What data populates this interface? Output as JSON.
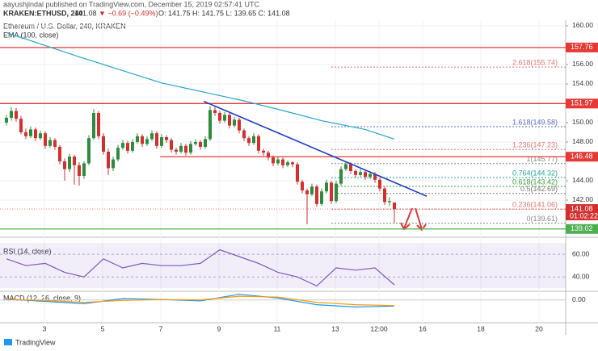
{
  "header": {
    "publisher": "aayushjindal published on TradingView.com, December 15, 2019 02:57:41 UTC",
    "symbol": "KRAKEN:ETHUSD, 240",
    "last": "141.08",
    "change": "▼ −0.69 (−0.49%)",
    "ohlc": "O: 141.75  H: 141.75  L: 139.65  C: 141.08"
  },
  "footer": {
    "brand": "TradingView"
  },
  "chart_data": {
    "type": "candlestick",
    "title": "Ethereum / U.S. Dollar, 240, KRAKEN",
    "up_color": "#2e8b3e",
    "down_color": "#d32f2f",
    "xlim": [
      -1.33,
      115.33
    ],
    "xticks": [
      {
        "value": 7.83,
        "label": "3"
      },
      {
        "value": 19.83,
        "label": "5"
      },
      {
        "value": 31.83,
        "label": "7"
      },
      {
        "value": 43.83,
        "label": "9"
      },
      {
        "value": 55.83,
        "label": "11"
      },
      {
        "value": 67.83,
        "label": "13"
      },
      {
        "value": 76.83,
        "label": "12:00"
      },
      {
        "value": 85.83,
        "label": "16"
      },
      {
        "value": 97.83,
        "label": "18"
      },
      {
        "value": 109.83,
        "label": "20"
      }
    ],
    "ylim": [
      138.25,
      160.58
    ],
    "yticks": [
      {
        "value": 160,
        "label": "160.00"
      },
      {
        "value": 156,
        "label": "156.00"
      },
      {
        "value": 154,
        "label": "154.00"
      },
      {
        "value": 150,
        "label": "150.00"
      },
      {
        "value": 148,
        "label": "148.00"
      },
      {
        "value": 144,
        "label": "144.00"
      },
      {
        "value": 142,
        "label": "142.00"
      }
    ],
    "grid": true,
    "ohlc": [
      [
        150.0,
        150.8,
        149.7,
        150.5
      ],
      [
        150.5,
        151.6,
        150.2,
        151.2
      ],
      [
        151.2,
        151.5,
        150.1,
        150.4
      ],
      [
        150.4,
        150.7,
        148.8,
        149.0
      ],
      [
        149.0,
        149.4,
        148.3,
        148.6
      ],
      [
        148.6,
        149.6,
        148.4,
        149.3
      ],
      [
        149.3,
        149.5,
        148.1,
        148.4
      ],
      [
        148.4,
        149.2,
        148.2,
        148.9
      ],
      [
        148.9,
        149.1,
        147.3,
        147.6
      ],
      [
        147.6,
        148.5,
        147.4,
        148.2
      ],
      [
        148.2,
        148.4,
        147.2,
        147.5
      ],
      [
        147.5,
        147.7,
        145.7,
        146.0
      ],
      [
        146.0,
        146.3,
        144.0,
        145.2
      ],
      [
        145.2,
        146.8,
        144.9,
        146.5
      ],
      [
        146.5,
        146.7,
        143.6,
        145.6
      ],
      [
        145.6,
        145.9,
        143.5,
        144.5
      ],
      [
        144.5,
        146.0,
        144.2,
        145.8
      ],
      [
        145.8,
        148.7,
        145.6,
        148.4
      ],
      [
        148.4,
        151.4,
        148.2,
        151.0
      ],
      [
        151.0,
        151.2,
        148.3,
        148.6
      ],
      [
        148.6,
        148.9,
        146.7,
        147.0
      ],
      [
        147.0,
        147.3,
        144.6,
        145.3
      ],
      [
        145.3,
        146.5,
        145.0,
        146.2
      ],
      [
        146.2,
        147.7,
        146.0,
        147.4
      ],
      [
        147.4,
        148.2,
        147.2,
        147.9
      ],
      [
        147.9,
        148.1,
        146.8,
        147.1
      ],
      [
        147.1,
        148.3,
        146.9,
        148.0
      ],
      [
        148.0,
        148.9,
        147.8,
        148.6
      ],
      [
        148.6,
        148.8,
        147.5,
        147.8
      ],
      [
        147.8,
        148.6,
        147.6,
        148.3
      ],
      [
        148.3,
        149.2,
        148.1,
        148.9
      ],
      [
        148.9,
        149.1,
        147.3,
        147.6
      ],
      [
        147.6,
        148.8,
        147.4,
        148.5
      ],
      [
        148.5,
        148.7,
        147.9,
        148.2
      ],
      [
        148.2,
        148.4,
        146.9,
        147.2
      ],
      [
        147.2,
        147.4,
        146.7,
        147.0
      ],
      [
        147.0,
        147.9,
        146.8,
        147.6
      ],
      [
        147.6,
        147.8,
        146.6,
        146.9
      ],
      [
        146.9,
        148.1,
        146.7,
        147.8
      ],
      [
        147.8,
        148.3,
        147.6,
        148.0
      ],
      [
        148.0,
        148.2,
        147.2,
        147.5
      ],
      [
        147.5,
        148.6,
        147.3,
        148.3
      ],
      [
        148.3,
        151.7,
        148.1,
        151.3
      ],
      [
        151.3,
        151.6,
        150.7,
        151.0
      ],
      [
        151.0,
        151.2,
        149.9,
        150.2
      ],
      [
        150.2,
        151.1,
        150.0,
        150.8
      ],
      [
        150.8,
        151.0,
        149.4,
        149.7
      ],
      [
        149.7,
        150.6,
        149.5,
        150.3
      ],
      [
        150.3,
        150.5,
        148.9,
        149.2
      ],
      [
        149.2,
        149.4,
        148.1,
        148.4
      ],
      [
        148.4,
        148.6,
        147.6,
        147.9
      ],
      [
        147.9,
        148.9,
        147.7,
        148.6
      ],
      [
        148.6,
        148.8,
        146.8,
        147.1
      ],
      [
        147.1,
        147.3,
        146.6,
        146.9
      ],
      [
        146.9,
        147.1,
        146.1,
        146.4
      ],
      [
        146.4,
        146.6,
        145.5,
        145.8
      ],
      [
        145.8,
        146.5,
        145.6,
        146.2
      ],
      [
        146.2,
        146.4,
        145.3,
        145.6
      ],
      [
        145.6,
        146.1,
        145.4,
        145.9
      ],
      [
        145.9,
        146.0,
        145.4,
        145.7
      ],
      [
        145.7,
        145.9,
        143.6,
        143.9
      ],
      [
        143.9,
        144.1,
        142.7,
        143.0
      ],
      [
        143.0,
        143.2,
        139.5,
        142.6
      ],
      [
        142.6,
        143.7,
        142.4,
        143.4
      ],
      [
        143.4,
        143.6,
        141.3,
        141.6
      ],
      [
        141.6,
        143.2,
        141.4,
        142.9
      ],
      [
        142.9,
        144.1,
        142.7,
        143.8
      ],
      [
        143.8,
        144.0,
        141.6,
        141.9
      ],
      [
        141.9,
        144.0,
        141.7,
        143.7
      ],
      [
        143.7,
        145.5,
        143.5,
        145.2
      ],
      [
        145.2,
        146.0,
        145.0,
        145.7
      ],
      [
        145.7,
        145.9,
        144.7,
        145.0
      ],
      [
        145.0,
        145.2,
        144.3,
        144.6
      ],
      [
        144.6,
        145.2,
        144.4,
        144.9
      ],
      [
        144.9,
        145.1,
        144.1,
        144.4
      ],
      [
        144.4,
        145.0,
        144.2,
        144.7
      ],
      [
        144.7,
        144.9,
        143.8,
        144.1
      ],
      [
        144.1,
        144.3,
        142.9,
        143.2
      ],
      [
        143.2,
        143.4,
        141.5,
        141.8
      ],
      [
        141.8,
        142.3,
        141.4,
        141.9
      ],
      [
        141.75,
        141.75,
        139.65,
        141.08
      ]
    ],
    "ema": {
      "name": "EMA (100, close)",
      "color": "#26a6c9",
      "x": [
        0,
        15,
        32,
        49,
        57,
        65,
        74,
        80
      ],
      "values": [
        159.3,
        156.8,
        154.1,
        152.25,
        151.25,
        150.2,
        149.3,
        148.3
      ]
    },
    "levels": [
      {
        "value": 157.76,
        "color": "#e53935",
        "x_start": -1.33
      },
      {
        "value": 151.97,
        "color": "#e53935",
        "x_start": -1.33
      },
      {
        "value": 146.48,
        "color": "#e53935",
        "x_start": 31.7
      },
      {
        "value": 139.02,
        "color": "#4caf50",
        "x_start": -1.33
      }
    ],
    "trendline": {
      "color": "#1e3fc4",
      "x": [
        40.7,
        86.7
      ],
      "values": [
        152.2,
        142.4
      ]
    },
    "countdown": "01:02:22",
    "fib": [
      {
        "label": "2.618(155.74)",
        "value": 155.74,
        "color": "#e57373"
      },
      {
        "label": "1.618(149.58)",
        "value": 149.58,
        "color": "#5c6bc0"
      },
      {
        "label": "1.236(147.23)",
        "value": 147.23,
        "color": "#e57373"
      },
      {
        "label": "1(145.77)",
        "value": 145.77,
        "color": "#888888"
      },
      {
        "label": "0.764(144.32)",
        "value": 144.32,
        "color": "#26a69a"
      },
      {
        "label": "0.618(143.42)",
        "value": 143.42,
        "color": "#43a047"
      },
      {
        "label": "0.5(142.69)",
        "value": 142.69,
        "color": "#777777"
      },
      {
        "label": "0.236(141.06)",
        "value": 141.06,
        "color": "#e57373"
      },
      {
        "label": "0(139.61)",
        "value": 139.61,
        "color": "#888888"
      }
    ],
    "fib_x_start": 67,
    "rsi": {
      "name": "RSI (14, close)",
      "color": "#7e57c2",
      "x": [
        0,
        4,
        8,
        12,
        16,
        20,
        24,
        28,
        32,
        36,
        40,
        44,
        48,
        52,
        56,
        60,
        64,
        68,
        72,
        76,
        80
      ],
      "values": [
        56,
        50,
        52,
        44,
        40,
        56,
        48,
        52,
        50,
        50,
        52,
        64,
        58,
        52,
        44,
        40,
        32,
        48,
        46,
        48,
        33
      ],
      "ylim": [
        28,
        74.4
      ],
      "band": [
        30,
        70
      ],
      "yticks": [
        {
          "value": 60,
          "label": "60.00"
        },
        {
          "value": 40,
          "label": "40.00"
        }
      ]
    },
    "macd": {
      "name": "MACD (12, 26, close, 9)",
      "ylim": [
        -4.67,
        1.67
      ],
      "yticks": [
        {
          "value": 0,
          "label": "0.00"
        }
      ],
      "lines": [
        {
          "color": "#2196f3",
          "x": [
            0,
            8,
            16,
            24,
            32,
            40,
            48,
            56,
            64,
            72,
            80
          ],
          "values": [
            0.2,
            -0.3,
            -0.8,
            0.3,
            0.1,
            -0.2,
            1.2,
            0.4,
            -1.0,
            -1.5,
            -1.3
          ]
        },
        {
          "color": "#ff9800",
          "x": [
            0,
            8,
            16,
            24,
            32,
            40,
            48,
            56,
            64,
            72,
            80
          ],
          "values": [
            0.1,
            -0.1,
            -0.5,
            -0.1,
            0.1,
            0.0,
            0.8,
            0.6,
            -0.5,
            -1.0,
            -1.2
          ]
        }
      ]
    }
  }
}
